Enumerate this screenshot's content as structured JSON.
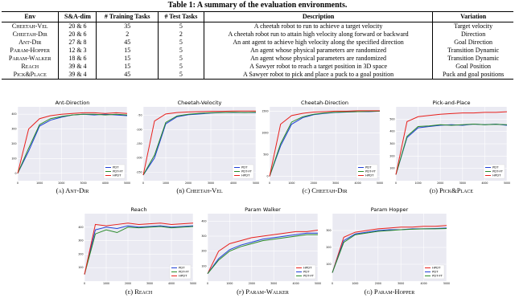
{
  "table": {
    "title": "Table 1: A summary of the evaluation environments.",
    "columns": [
      "Env",
      "S&A-dim",
      "# Training Tasks",
      "# Test Tasks",
      "Description",
      "Variation"
    ],
    "rows": [
      [
        "Cheetah-Vel",
        "20 & 6",
        "35",
        "5",
        "A cheetah robot to run to achieve a target velocity",
        "Target velocity"
      ],
      [
        "Cheetah-Dir",
        "20 & 6",
        "2",
        "2",
        "A cheetah robot run to attain high velocity along forward or backward",
        "Direction"
      ],
      [
        "Ant-Dir",
        "27 & 8",
        "45",
        "5",
        "An ant agent to achieve high velocity along the specified direction",
        "Goal Direction"
      ],
      [
        "Param-Hopper",
        "12 & 3",
        "15",
        "5",
        "An agent whose physical parameters are randomized",
        "Transition Dynamic"
      ],
      [
        "Param-Walker",
        "18 & 6",
        "15",
        "5",
        "An agent whose physical parameters are randomized",
        "Transition Dynamic"
      ],
      [
        "Reach",
        "39 & 4",
        "15",
        "5",
        "A Sawyer robot to reach a target position in 3D space",
        "Goal Position"
      ],
      [
        "Pick&Place",
        "39 & 4",
        "45",
        "5",
        "A Sawyer robot to pick and place a puck to a goal position",
        "Puck and goal positions"
      ]
    ]
  },
  "chart_data": [
    {
      "type": "line",
      "title": "Ant-Direction",
      "caption": "(a) Ant-Dir",
      "legend": "lower right",
      "grid": true,
      "x": [
        0,
        500,
        1000,
        1500,
        2000,
        2500,
        3000,
        3500,
        4000,
        4500,
        5000
      ],
      "xlim": [
        0,
        5000
      ],
      "xticks": [
        0,
        1000,
        2000,
        3000,
        4000,
        5000
      ],
      "ylim": [
        -50,
        450
      ],
      "yticks": [
        0,
        100,
        200,
        300,
        400
      ],
      "series": [
        {
          "name": "PDT",
          "color": "#1f3fd6",
          "values": [
            0,
            150,
            320,
            360,
            380,
            395,
            400,
            395,
            400,
            395,
            390
          ]
        },
        {
          "name": "PDT-FT",
          "color": "#2a8a2a",
          "values": [
            0,
            170,
            330,
            370,
            385,
            395,
            400,
            400,
            395,
            400,
            395
          ]
        },
        {
          "name": "HPDT",
          "color": "#e8201c",
          "values": [
            0,
            300,
            370,
            390,
            400,
            405,
            410,
            410,
            405,
            410,
            405
          ]
        }
      ]
    },
    {
      "type": "line",
      "title": "Cheetah-Velocity",
      "caption": "(b) Cheetah-Vel",
      "legend": "lower right",
      "grid": true,
      "x": [
        0,
        500,
        1000,
        1500,
        2000,
        2500,
        3000,
        3500,
        4000,
        4500,
        5000
      ],
      "xlim": [
        0,
        5000
      ],
      "xticks": [
        0,
        1000,
        2000,
        3000,
        4000,
        5000
      ],
      "ylim": [
        -280,
        -20
      ],
      "yticks": [
        -250,
        -200,
        -150,
        -100,
        -50
      ],
      "series": [
        {
          "name": "PDT",
          "color": "#1f3fd6",
          "values": [
            -260,
            -200,
            -80,
            -55,
            -48,
            -45,
            -42,
            -40,
            -40,
            -40,
            -40
          ]
        },
        {
          "name": "PDT-FT",
          "color": "#2a8a2a",
          "values": [
            -260,
            -190,
            -75,
            -52,
            -46,
            -43,
            -41,
            -40,
            -39,
            -40,
            -39
          ]
        },
        {
          "name": "HPDT",
          "color": "#e8201c",
          "values": [
            -260,
            -70,
            -45,
            -40,
            -38,
            -37,
            -36,
            -36,
            -35,
            -35,
            -35
          ]
        }
      ]
    },
    {
      "type": "line",
      "title": "Cheetah-Direction",
      "caption": "(c) Cheetah-Dir",
      "legend": "lower right",
      "grid": true,
      "x": [
        0,
        500,
        1000,
        1500,
        2000,
        2500,
        3000,
        3500,
        4000,
        4500,
        5000
      ],
      "xlim": [
        0,
        5000
      ],
      "xticks": [
        0,
        1000,
        2000,
        3000,
        4000,
        5000
      ],
      "ylim": [
        -100,
        1600
      ],
      "yticks": [
        0,
        500,
        1000,
        1500
      ],
      "series": [
        {
          "name": "PDT",
          "color": "#1f3fd6",
          "values": [
            0,
            700,
            1200,
            1350,
            1420,
            1450,
            1470,
            1480,
            1490,
            1490,
            1500
          ]
        },
        {
          "name": "PDT-FT",
          "color": "#2a8a2a",
          "values": [
            0,
            750,
            1250,
            1370,
            1430,
            1460,
            1475,
            1485,
            1490,
            1495,
            1500
          ]
        },
        {
          "name": "HPDT",
          "color": "#e8201c",
          "values": [
            0,
            1200,
            1400,
            1450,
            1480,
            1490,
            1500,
            1500,
            1510,
            1510,
            1510
          ]
        }
      ]
    },
    {
      "type": "line",
      "title": "Pick-and-Place",
      "caption": "(d) Pick&Place",
      "legend": "lower right",
      "grid": true,
      "x": [
        0,
        500,
        1000,
        1500,
        2000,
        2500,
        3000,
        3500,
        4000,
        4500,
        5000
      ],
      "xlim": [
        0,
        5000
      ],
      "xticks": [
        0,
        1000,
        2000,
        3000,
        4000,
        5000
      ],
      "ylim": [
        0,
        600
      ],
      "yticks": [
        100,
        200,
        300,
        400,
        500
      ],
      "series": [
        {
          "name": "PDT",
          "color": "#1f3fd6",
          "values": [
            50,
            350,
            430,
            440,
            450,
            455,
            450,
            460,
            455,
            460,
            450
          ]
        },
        {
          "name": "PDT-FT",
          "color": "#2a8a2a",
          "values": [
            50,
            360,
            440,
            445,
            455,
            450,
            455,
            460,
            455,
            458,
            455
          ]
        },
        {
          "name": "HPDT",
          "color": "#e8201c",
          "values": [
            50,
            480,
            520,
            530,
            540,
            545,
            550,
            550,
            555,
            555,
            560
          ]
        }
      ]
    },
    {
      "type": "line",
      "title": "Reach",
      "caption": "(e) Reach",
      "legend": "lower right",
      "grid": true,
      "x": [
        0,
        500,
        1000,
        1500,
        2000,
        2500,
        3000,
        3500,
        4000,
        4500,
        5000
      ],
      "xlim": [
        0,
        5000
      ],
      "xticks": [
        0,
        1000,
        2000,
        3000,
        4000,
        5000
      ],
      "ylim": [
        0,
        500
      ],
      "yticks": [
        100,
        200,
        300,
        400
      ],
      "series": [
        {
          "name": "PDT",
          "color": "#1f3fd6",
          "values": [
            50,
            380,
            400,
            390,
            410,
            400,
            405,
            410,
            400,
            405,
            410
          ]
        },
        {
          "name": "PDT-FT",
          "color": "#2a8a2a",
          "values": [
            50,
            350,
            380,
            360,
            400,
            395,
            400,
            405,
            395,
            400,
            405
          ]
        },
        {
          "name": "HPDT",
          "color": "#e8201c",
          "values": [
            50,
            420,
            410,
            420,
            430,
            420,
            425,
            430,
            420,
            425,
            430
          ]
        }
      ]
    },
    {
      "type": "line",
      "title": "Param Walker",
      "caption": "(f) Param-Walker",
      "legend": "lower right",
      "grid": true,
      "x": [
        0,
        500,
        1000,
        1500,
        2000,
        2500,
        3000,
        3500,
        4000,
        4500,
        5000
      ],
      "xlim": [
        0,
        5000
      ],
      "xticks": [
        0,
        1000,
        2000,
        3000,
        4000,
        5000
      ],
      "ylim": [
        0,
        450
      ],
      "yticks": [
        100,
        200,
        300,
        400
      ],
      "series": [
        {
          "name": "HPDT",
          "color": "#e8201c",
          "values": [
            50,
            200,
            250,
            270,
            290,
            300,
            310,
            320,
            330,
            330,
            340
          ]
        },
        {
          "name": "PDT",
          "color": "#1f3fd6",
          "values": [
            50,
            150,
            210,
            240,
            260,
            280,
            290,
            300,
            310,
            320,
            320
          ]
        },
        {
          "name": "PDT-FT",
          "color": "#2a8a2a",
          "values": [
            50,
            140,
            200,
            230,
            250,
            270,
            280,
            290,
            300,
            310,
            310
          ]
        }
      ]
    },
    {
      "type": "line",
      "title": "Param Hopper",
      "caption": "(g) Param-Hopper",
      "legend": "lower right",
      "grid": true,
      "x": [
        0,
        500,
        1000,
        1500,
        2000,
        2500,
        3000,
        3500,
        4000,
        4500,
        5000
      ],
      "xlim": [
        0,
        5000
      ],
      "xticks": [
        0,
        1000,
        2000,
        3000,
        4000,
        5000
      ],
      "ylim": [
        0,
        400
      ],
      "yticks": [
        100,
        200,
        300
      ],
      "series": [
        {
          "name": "HPDT",
          "color": "#e8201c",
          "values": [
            50,
            260,
            290,
            300,
            310,
            315,
            320,
            320,
            325,
            325,
            330
          ]
        },
        {
          "name": "PDT",
          "color": "#1f3fd6",
          "values": [
            50,
            240,
            280,
            290,
            300,
            305,
            305,
            310,
            310,
            312,
            315
          ]
        },
        {
          "name": "PDT-FT",
          "color": "#2a8a2a",
          "values": [
            50,
            230,
            275,
            285,
            295,
            300,
            305,
            308,
            310,
            310,
            312
          ]
        }
      ]
    }
  ]
}
